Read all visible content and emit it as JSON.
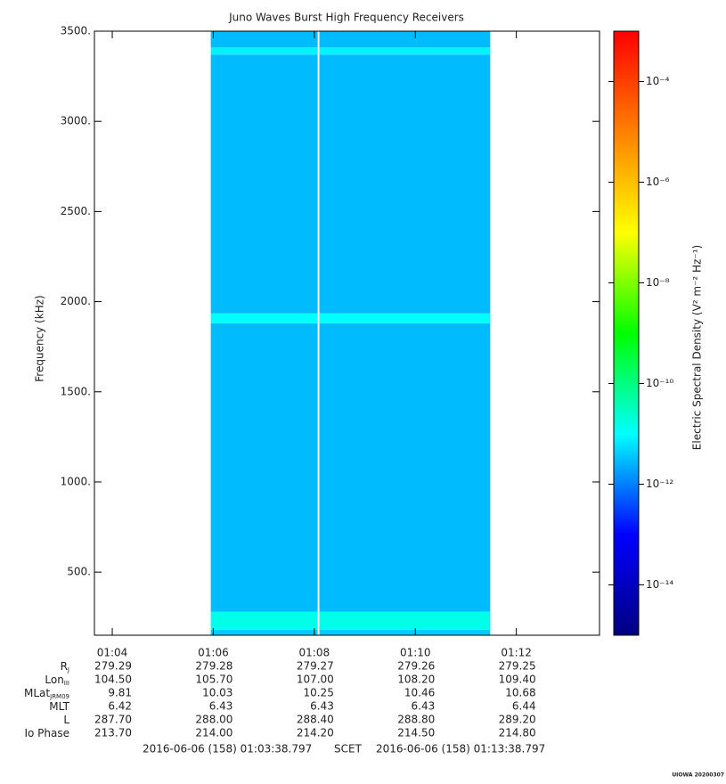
{
  "chart_data": {
    "type": "spectrogram",
    "title": "Juno Waves Burst High Frequency Receivers",
    "ylabel": "Frequency (kHz)",
    "zlabel": "Electric Spectral Density (V² m⁻² Hz⁻¹)",
    "xlim": [
      "01:03:38.797",
      "01:13:38.797"
    ],
    "xticks": [
      "01:04",
      "01:06",
      "01:08",
      "01:10",
      "01:12"
    ],
    "ylim": [
      150,
      3500
    ],
    "yticks": [
      {
        "value": 500,
        "label": "500."
      },
      {
        "value": 1000,
        "label": "1000."
      },
      {
        "value": 1500,
        "label": "1500."
      },
      {
        "value": 2000,
        "label": "2000."
      },
      {
        "value": 2500,
        "label": "2500."
      },
      {
        "value": 3000,
        "label": "3000."
      },
      {
        "value": 3500,
        "label": "3500."
      }
    ],
    "xbins": [
      "01:05:57",
      "01:08:04",
      "01:08:06",
      "01:11:29"
    ],
    "ybins": [
      150,
      180,
      280,
      1880,
      1935,
      3370,
      3410,
      3500
    ],
    "z": [
      [
        4e-12,
        null,
        4e-12
      ],
      [
        1.5e-11,
        null,
        1.5e-11
      ],
      [
        3e-12,
        null,
        3e-12
      ],
      [
        1e-11,
        null,
        1e-11
      ],
      [
        3e-12,
        null,
        3e-12
      ],
      [
        8e-12,
        null,
        8e-12
      ],
      [
        3e-12,
        null,
        3e-12
      ]
    ],
    "zscale": "log",
    "zlim": [
      1e-15,
      0.001
    ],
    "zticks": [
      {
        "value": 0.0001,
        "label": "10⁻⁴"
      },
      {
        "value": 1e-06,
        "label": "10⁻⁶"
      },
      {
        "value": 1e-08,
        "label": "10⁻⁸"
      },
      {
        "value": 1e-10,
        "label": "10⁻¹⁰"
      },
      {
        "value": 1e-12,
        "label": "10⁻¹²"
      },
      {
        "value": 1e-14,
        "label": "10⁻¹⁴"
      }
    ],
    "colormap": [
      "#000080",
      "#0000ff",
      "#00ffff",
      "#00ff00",
      "#ffff00",
      "#ff8000",
      "#ff0000"
    ],
    "ephemeris": [
      {
        "label": "R",
        "subscript": "J",
        "values": [
          "279.29",
          "279.28",
          "279.27",
          "279.26",
          "279.25"
        ]
      },
      {
        "label": "Lon",
        "subscript": "III",
        "values": [
          "104.50",
          "105.70",
          "107.00",
          "108.20",
          "109.40"
        ]
      },
      {
        "label": "MLat",
        "subscript": "JRM09",
        "values": [
          "9.81",
          "10.03",
          "10.25",
          "10.46",
          "10.68"
        ]
      },
      {
        "label": "MLT",
        "values": [
          "6.42",
          "6.43",
          "6.43",
          "6.43",
          "6.44"
        ]
      },
      {
        "label": "L",
        "values": [
          "287.70",
          "288.00",
          "288.40",
          "288.80",
          "289.20"
        ]
      },
      {
        "label": "Io Phase",
        "values": [
          "213.70",
          "214.00",
          "214.20",
          "214.50",
          "214.80"
        ]
      }
    ],
    "footer": [
      "2016-06-06 (158) 01:03:38.797",
      "SCET",
      "2016-06-06 (158) 01:13:38.797"
    ],
    "credit": "UIOWA 20200307"
  }
}
